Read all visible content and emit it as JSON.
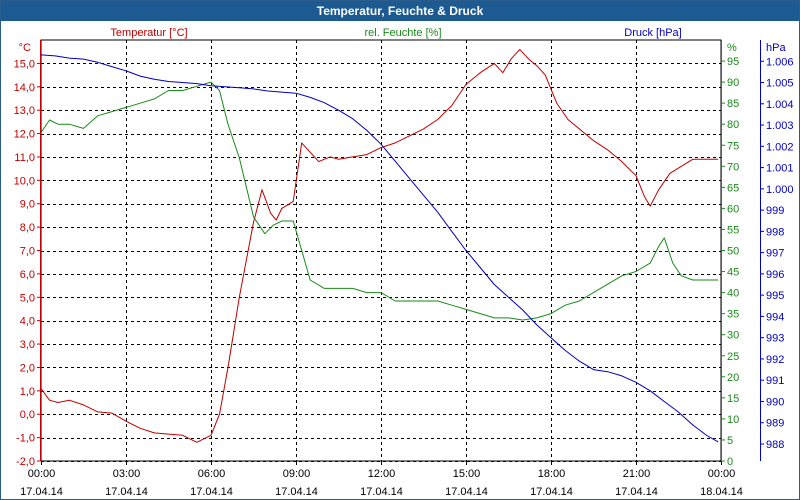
{
  "window": {
    "title": "Temperatur, Feuchte & Druck"
  },
  "colors": {
    "temperature": "#c00000",
    "humidity": "#1a8a1a",
    "pressure": "#0000c0",
    "grid": "#000000",
    "titlebar": "#1d5a92"
  },
  "chart_data": {
    "type": "line",
    "title": "Temperatur, Feuchte & Druck",
    "x_axis": {
      "ticks": [
        {
          "time": "00:00",
          "date": "17.04.14"
        },
        {
          "time": "03:00",
          "date": "17.04.14"
        },
        {
          "time": "06:00",
          "date": "17.04.14"
        },
        {
          "time": "09:00",
          "date": "17.04.14"
        },
        {
          "time": "12:00",
          "date": "17.04.14"
        },
        {
          "time": "15:00",
          "date": "17.04.14"
        },
        {
          "time": "18:00",
          "date": "17.04.14"
        },
        {
          "time": "21:00",
          "date": "17.04.14"
        },
        {
          "time": "00:00",
          "date": "18.04.14"
        }
      ],
      "range_hours": [
        0,
        24
      ]
    },
    "axes": {
      "temperature": {
        "label": "Temperatur [°C]",
        "unit": "°C",
        "range": [
          -2,
          16
        ],
        "ticks": [
          "-2,0",
          "-1,0",
          "0,0",
          "1,0",
          "2,0",
          "3,0",
          "4,0",
          "5,0",
          "6,0",
          "7,0",
          "8,0",
          "9,0",
          "10,0",
          "11,0",
          "12,0",
          "13,0",
          "14,0",
          "15,0"
        ]
      },
      "humidity": {
        "label": "rel. Feuchte [%]",
        "unit": "%",
        "range": [
          0,
          100
        ],
        "ticks": [
          "0",
          "5",
          "10",
          "15",
          "20",
          "25",
          "30",
          "35",
          "40",
          "45",
          "50",
          "55",
          "60",
          "65",
          "70",
          "75",
          "80",
          "85",
          "90",
          "95"
        ]
      },
      "pressure": {
        "label": "Druck [hPa]",
        "unit": "hPa",
        "range": [
          987.2,
          1007
        ],
        "ticks": [
          "988",
          "989",
          "990",
          "991",
          "992",
          "993",
          "994",
          "995",
          "996",
          "997",
          "998",
          "999",
          "1.000",
          "1.001",
          "1.002",
          "1.003",
          "1.004",
          "1.005",
          "1.006"
        ]
      }
    },
    "grid": true,
    "series": [
      {
        "name": "Temperatur [°C]",
        "axis": "temperature",
        "points": [
          [
            0,
            1.1
          ],
          [
            0.3,
            0.6
          ],
          [
            0.6,
            0.5
          ],
          [
            1,
            0.6
          ],
          [
            1.5,
            0.4
          ],
          [
            2,
            0.1
          ],
          [
            2.5,
            0.05
          ],
          [
            3,
            -0.3
          ],
          [
            3.5,
            -0.6
          ],
          [
            4,
            -0.8
          ],
          [
            4.5,
            -0.85
          ],
          [
            5,
            -0.9
          ],
          [
            5.5,
            -1.2
          ],
          [
            6,
            -0.9
          ],
          [
            6.3,
            0
          ],
          [
            6.6,
            2
          ],
          [
            7,
            5
          ],
          [
            7.5,
            8.2
          ],
          [
            7.8,
            9.6
          ],
          [
            8.1,
            8.6
          ],
          [
            8.3,
            8.3
          ],
          [
            8.5,
            8.8
          ],
          [
            8.9,
            9.1
          ],
          [
            9.2,
            11.6
          ],
          [
            9.5,
            11.2
          ],
          [
            9.8,
            10.8
          ],
          [
            10.2,
            11
          ],
          [
            10.5,
            10.9
          ],
          [
            11,
            11
          ],
          [
            11.5,
            11.1
          ],
          [
            12,
            11.4
          ],
          [
            12.5,
            11.6
          ],
          [
            13,
            11.9
          ],
          [
            13.5,
            12.2
          ],
          [
            14,
            12.6
          ],
          [
            14.5,
            13.2
          ],
          [
            15,
            14.1
          ],
          [
            15.5,
            14.6
          ],
          [
            16,
            15.0
          ],
          [
            16.3,
            14.6
          ],
          [
            16.6,
            15.2
          ],
          [
            16.9,
            15.6
          ],
          [
            17.2,
            15.2
          ],
          [
            17.5,
            14.9
          ],
          [
            17.8,
            14.5
          ],
          [
            18.2,
            13.3
          ],
          [
            18.6,
            12.6
          ],
          [
            19,
            12.2
          ],
          [
            19.5,
            11.7
          ],
          [
            20,
            11.3
          ],
          [
            20.5,
            10.8
          ],
          [
            21,
            10.2
          ],
          [
            21.3,
            9.3
          ],
          [
            21.5,
            8.9
          ],
          [
            21.8,
            9.6
          ],
          [
            22.2,
            10.3
          ],
          [
            22.6,
            10.6
          ],
          [
            23,
            10.9
          ],
          [
            23.5,
            10.9
          ],
          [
            23.9,
            10.9
          ]
        ]
      },
      {
        "name": "rel. Feuchte [%]",
        "axis": "humidity",
        "points": [
          [
            0,
            78
          ],
          [
            0.3,
            81
          ],
          [
            0.6,
            80
          ],
          [
            1,
            80
          ],
          [
            1.5,
            79
          ],
          [
            2,
            82
          ],
          [
            2.5,
            83
          ],
          [
            3,
            84
          ],
          [
            3.5,
            85
          ],
          [
            4,
            86
          ],
          [
            4.5,
            88
          ],
          [
            5,
            88
          ],
          [
            5.5,
            89
          ],
          [
            6,
            90
          ],
          [
            6.3,
            88
          ],
          [
            6.6,
            80
          ],
          [
            7,
            72
          ],
          [
            7.5,
            58
          ],
          [
            7.9,
            54
          ],
          [
            8.2,
            56
          ],
          [
            8.5,
            57
          ],
          [
            8.9,
            57
          ],
          [
            9.2,
            50
          ],
          [
            9.5,
            43
          ],
          [
            10,
            41
          ],
          [
            10.5,
            41
          ],
          [
            11,
            41
          ],
          [
            11.5,
            40
          ],
          [
            12,
            40
          ],
          [
            12.5,
            38
          ],
          [
            13,
            38
          ],
          [
            13.5,
            38
          ],
          [
            14,
            38
          ],
          [
            14.5,
            37
          ],
          [
            15,
            36
          ],
          [
            15.5,
            35
          ],
          [
            16,
            34
          ],
          [
            16.5,
            34
          ],
          [
            17,
            33.5
          ],
          [
            17.5,
            34
          ],
          [
            18,
            35
          ],
          [
            18.5,
            37
          ],
          [
            19,
            38
          ],
          [
            19.5,
            40
          ],
          [
            20,
            42
          ],
          [
            20.5,
            44
          ],
          [
            21,
            45
          ],
          [
            21.5,
            47
          ],
          [
            21.8,
            51
          ],
          [
            22,
            53
          ],
          [
            22.3,
            47
          ],
          [
            22.6,
            44
          ],
          [
            23,
            43
          ],
          [
            23.5,
            43
          ],
          [
            23.9,
            43
          ]
        ]
      },
      {
        "name": "Druck [hPa]",
        "axis": "pressure",
        "points": [
          [
            0,
            1006.3
          ],
          [
            0.5,
            1006.25
          ],
          [
            1,
            1006.15
          ],
          [
            1.5,
            1006.1
          ],
          [
            2,
            1005.95
          ],
          [
            2.5,
            1005.75
          ],
          [
            3,
            1005.55
          ],
          [
            3.5,
            1005.3
          ],
          [
            4,
            1005.15
          ],
          [
            4.5,
            1005.05
          ],
          [
            5,
            1005.0
          ],
          [
            5.5,
            1004.95
          ],
          [
            6,
            1004.85
          ],
          [
            6.5,
            1004.8
          ],
          [
            7,
            1004.75
          ],
          [
            7.5,
            1004.7
          ],
          [
            8,
            1004.6
          ],
          [
            8.5,
            1004.55
          ],
          [
            9,
            1004.5
          ],
          [
            9.5,
            1004.3
          ],
          [
            10,
            1004.05
          ],
          [
            10.5,
            1003.7
          ],
          [
            11,
            1003.3
          ],
          [
            11.5,
            1002.75
          ],
          [
            12,
            1002.1
          ],
          [
            12.5,
            1001.3
          ],
          [
            13,
            1000.5
          ],
          [
            13.5,
            999.7
          ],
          [
            14,
            998.9
          ],
          [
            14.5,
            998.0
          ],
          [
            15,
            997.1
          ],
          [
            15.5,
            996.3
          ],
          [
            16,
            995.5
          ],
          [
            16.5,
            994.9
          ],
          [
            17,
            994.3
          ],
          [
            17.5,
            993.6
          ],
          [
            18,
            993.0
          ],
          [
            18.5,
            992.4
          ],
          [
            19,
            991.9
          ],
          [
            19.5,
            991.5
          ],
          [
            20,
            991.4
          ],
          [
            20.5,
            991.2
          ],
          [
            21,
            990.9
          ],
          [
            21.5,
            990.5
          ],
          [
            22,
            990.0
          ],
          [
            22.5,
            989.5
          ],
          [
            23,
            988.9
          ],
          [
            23.5,
            988.4
          ],
          [
            23.9,
            988.1
          ]
        ]
      }
    ]
  }
}
